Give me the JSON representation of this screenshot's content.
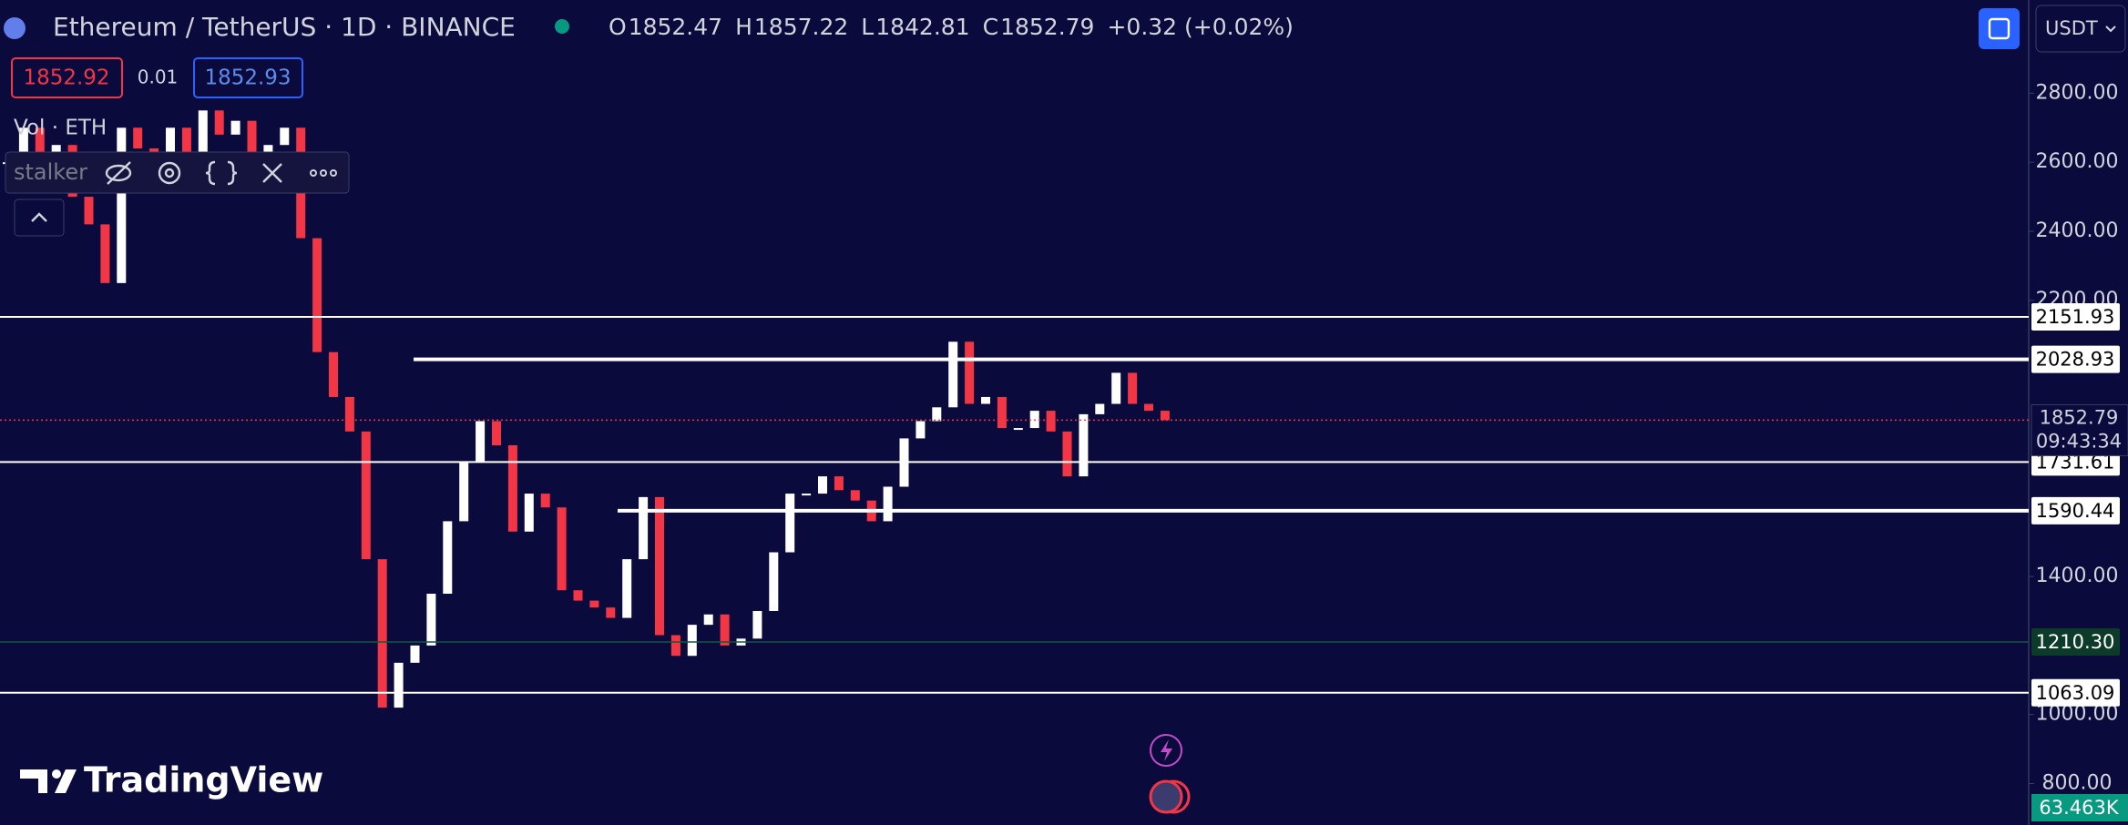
{
  "header": {
    "ohlc": [
      {
        "k": "O",
        "v": "1852.47"
      },
      {
        "k": "H",
        "v": "1857.22"
      },
      {
        "k": "L",
        "v": "1842.81"
      },
      {
        "k": "C",
        "v": "1852.79"
      }
    ],
    "change": "+0.32 (+0.02%)",
    "bid": "1852.92",
    "spread": "0.01",
    "ask": "1852.93",
    "volume_label": "Vol · ETH",
    "indicator": "stalker",
    "logo": "TradingView",
    "currency": "USDT"
  },
  "chart_data": {
    "type": "candlestick",
    "title": "Ethereum / TetherUS · 1D · BINANCE",
    "values": [
      2600,
      2700,
      2550,
      2650,
      2500,
      2420,
      2250,
      2700,
      2640,
      2560,
      2700,
      2620,
      2750,
      2680,
      2720,
      2600,
      2650,
      2700,
      2380,
      2050,
      1920,
      1820,
      1450,
      1020,
      1150,
      1200,
      1350,
      1560,
      1730,
      1850,
      1780,
      1530,
      1640,
      1600,
      1360,
      1330,
      1310,
      1280,
      1450,
      1630,
      1230,
      1170,
      1260,
      1290,
      1200,
      1220,
      1300,
      1470,
      1640,
      1640,
      1690,
      1650,
      1620,
      1560,
      1660,
      1800,
      1850,
      1890,
      2080,
      1900,
      1920,
      1830,
      1830,
      1880,
      1820,
      1690,
      1870,
      1900,
      1990,
      1900,
      1880,
      1852.79
    ],
    "ylim": [
      680,
      3070
    ],
    "yticks": [
      {
        "value": 800,
        "label": "800.00"
      },
      {
        "value": 1000,
        "label": "1000.00"
      },
      {
        "value": 1400,
        "label": "1400.00"
      },
      {
        "value": 2200,
        "label": "2200.00"
      },
      {
        "value": 2400,
        "label": "2400.00"
      },
      {
        "value": 2600,
        "label": "2600.00"
      },
      {
        "value": 2800,
        "label": "2800.00"
      }
    ],
    "levels": [
      2151.93,
      2028.93,
      1731.61,
      1590.44,
      {
        "value": 1210.3,
        "label": "1210.30"
      },
      1063.09
    ],
    "last_price": 1852.79,
    "countdown": "09:43:34",
    "volume_last": "63.463K",
    "up_color": "#ffffff",
    "down_color": "#f23645"
  }
}
